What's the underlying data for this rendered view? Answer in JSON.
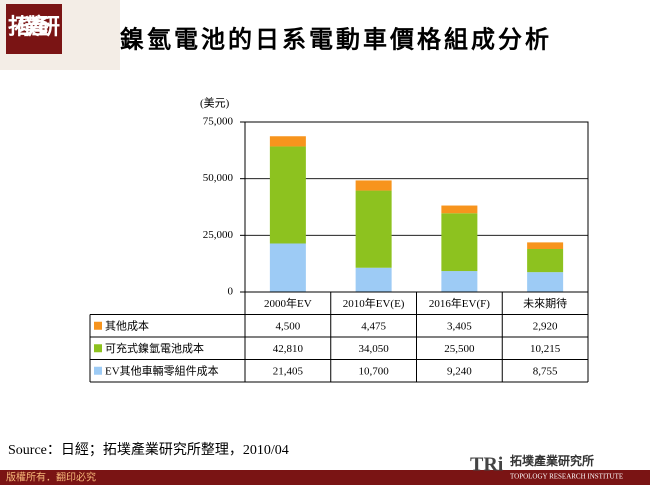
{
  "logo": "拓墣產研",
  "footer": {
    "copyright": "版權所有．翻印必究",
    "brand_mark": "TRi",
    "brand_name": "拓墣產業研究所",
    "brand_en": "TOPOLOGY RESEARCH INSTITUTE"
  },
  "source": "Source：日經；拓墣產業研究所整理，2010/04",
  "chart_data": {
    "type": "stacked-bar",
    "title": "鎳氫電池的日系電動車價格組成分析",
    "y_label": "(美元)",
    "categories": [
      "2000年EV",
      "2010年EV(E)",
      "2016年EV(F)",
      "未來期待"
    ],
    "series": [
      {
        "name": "其他成本",
        "color": "#f7941d",
        "values": [
          4500,
          4475,
          3405,
          2920
        ],
        "value_labels": [
          "4,500",
          "4,475",
          "3,405",
          "2,920"
        ]
      },
      {
        "name": "可充式鎳氫電池成本",
        "color": "#8dc21f",
        "values": [
          42810,
          34050,
          25500,
          10215
        ],
        "value_labels": [
          "42,810",
          "34,050",
          "25,500",
          "10,215"
        ]
      },
      {
        "name": "EV其他車輛零組件成本",
        "color": "#9dcbf5",
        "values": [
          21405,
          10700,
          9240,
          8755
        ],
        "value_labels": [
          "21,405",
          "10,700",
          "9,240",
          "8,755"
        ]
      }
    ],
    "ylim": [
      0,
      75000
    ],
    "yticks": [
      0,
      {
        "value": 25000,
        "label": "25,000"
      },
      {
        "value": 50000,
        "label": "50,000"
      },
      {
        "value": 75000,
        "label": "75,000"
      }
    ],
    "grid": true
  }
}
